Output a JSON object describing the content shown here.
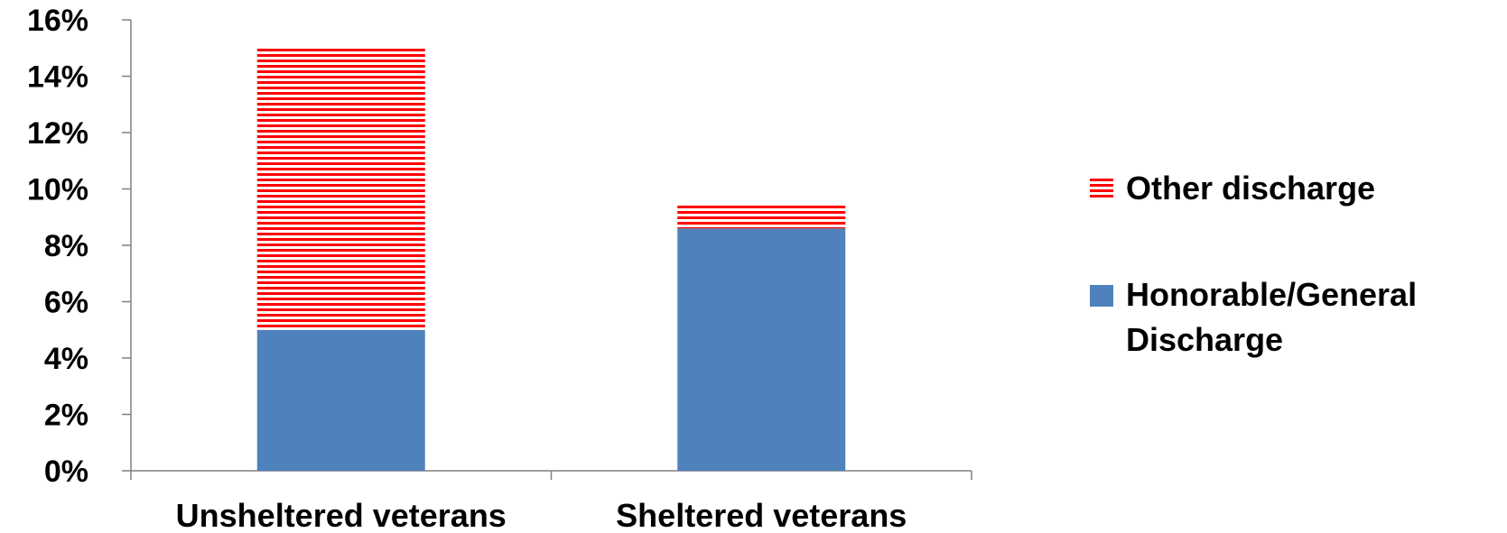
{
  "chart_data": {
    "type": "bar",
    "stacked": true,
    "categories": [
      "Unsheltered veterans",
      "Sheltered veterans"
    ],
    "series": [
      {
        "name": "Honorable/General Discharge",
        "values": [
          5.0,
          8.6
        ],
        "color": "#4F81BD",
        "pattern": "solid"
      },
      {
        "name": "Other discharge",
        "values": [
          10.0,
          0.9
        ],
        "color": "#FF0000",
        "pattern": "horizontal-stripes"
      }
    ],
    "yticks": [
      "0%",
      "2%",
      "4%",
      "6%",
      "8%",
      "10%",
      "12%",
      "14%",
      "16%"
    ],
    "ylim": [
      0,
      16
    ],
    "yunit": "%",
    "title": "",
    "xlabel": "",
    "ylabel": "",
    "grid": false,
    "legend_position": "right",
    "legend_order": [
      "Other discharge",
      "Honorable/General Discharge"
    ],
    "legend_lines": {
      "Other discharge": [
        "Other discharge"
      ],
      "Honorable/General Discharge": [
        "Honorable/General",
        "Discharge"
      ]
    }
  }
}
